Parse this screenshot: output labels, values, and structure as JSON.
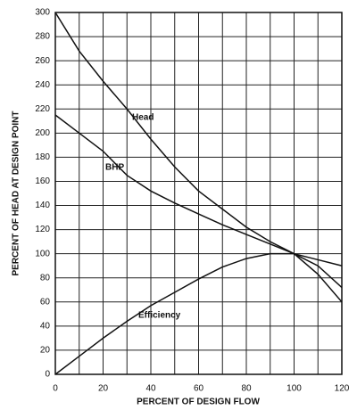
{
  "chart_data": {
    "type": "line",
    "x_label": "PERCENT OF DESIGN FLOW",
    "y_label": "PERCENT OF HEAD AT DESIGN POINT",
    "x": [
      0,
      10,
      20,
      30,
      40,
      50,
      60,
      70,
      80,
      90,
      100,
      110,
      120
    ],
    "series": [
      {
        "name": "Head",
        "color": "#111111",
        "values": [
          300,
          268,
          243,
          220,
          195,
          172,
          152,
          137,
          122,
          110,
          100,
          83,
          60
        ]
      },
      {
        "name": "BHP",
        "color": "#111111",
        "values": [
          215,
          200,
          185,
          165,
          152,
          142,
          133,
          124,
          116,
          108,
          100,
          95,
          90
        ]
      },
      {
        "name": "Efficiency",
        "color": "#111111",
        "values": [
          0,
          15,
          30,
          44,
          57,
          68,
          79,
          89,
          96,
          100,
          100,
          90,
          72
        ]
      }
    ],
    "xlim": [
      0,
      120
    ],
    "xticks": [
      0,
      20,
      40,
      60,
      80,
      100,
      120
    ],
    "x_minor_ticks": [
      10,
      30,
      50,
      70,
      90,
      110
    ],
    "ylim": [
      0,
      300
    ],
    "yticks": [
      0,
      20,
      40,
      60,
      80,
      100,
      120,
      140,
      160,
      180,
      200,
      220,
      240,
      260,
      280,
      300
    ],
    "grid": true
  }
}
